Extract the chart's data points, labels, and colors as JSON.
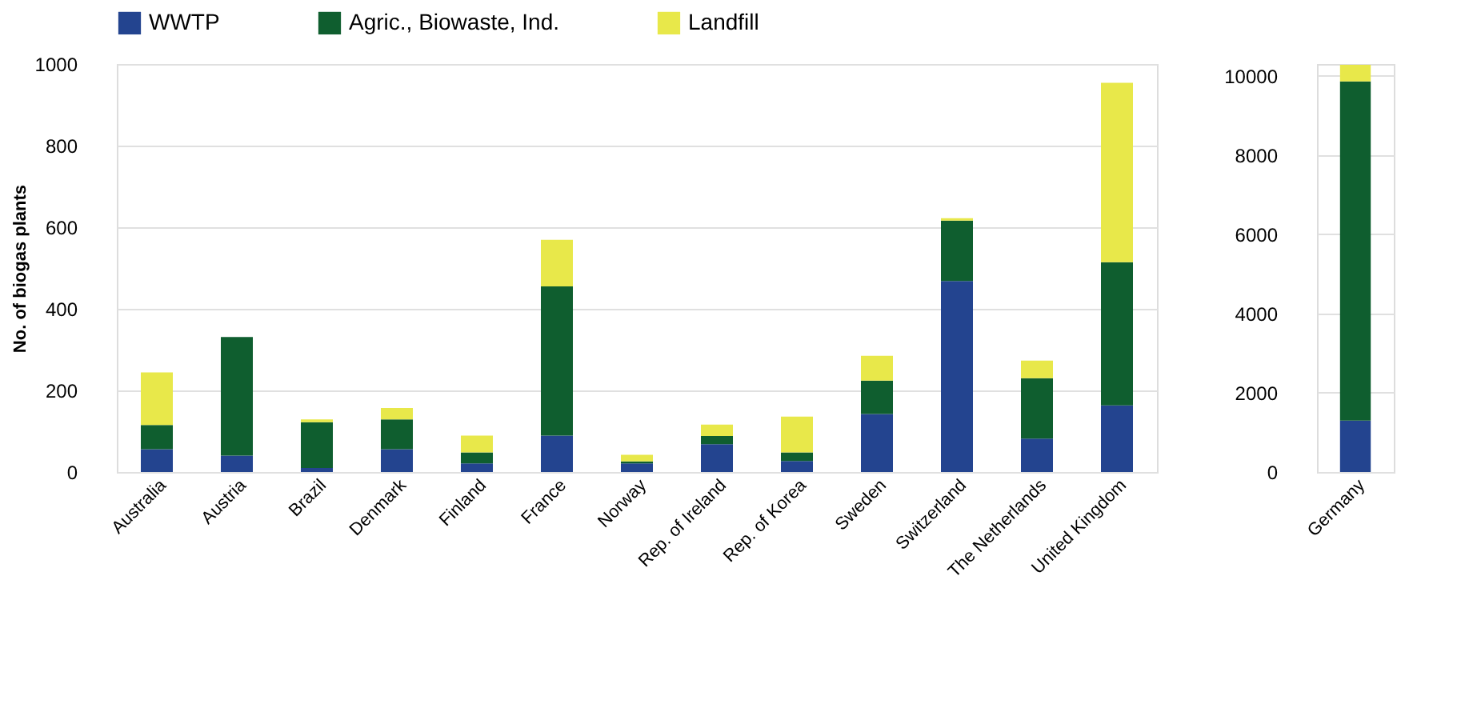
{
  "chart_data": [
    {
      "type": "bar",
      "stacked": true,
      "ylabel": "No. of biogas plants",
      "categories": [
        "Australia",
        "Austria",
        "Brazil",
        "Denmark",
        "Finland",
        "France",
        "Norway",
        "Rep. of Ireland",
        "Rep. of Korea",
        "Sweden",
        "Switzerland",
        "The Netherlands",
        "United Kingdom"
      ],
      "series": [
        {
          "name": "WWTP",
          "color": "#23448f",
          "values": [
            56,
            40,
            10,
            56,
            21,
            89,
            21,
            68,
            27,
            142,
            468,
            82,
            163
          ]
        },
        {
          "name": "Agric., Biowaste, Ind.",
          "color": "#0f5e2f",
          "values": [
            59,
            291,
            112,
            73,
            27,
            366,
            5,
            20,
            21,
            82,
            148,
            148,
            351
          ]
        },
        {
          "name": "Landfill",
          "color": "#e8e84a",
          "values": [
            129,
            0,
            7,
            28,
            41,
            114,
            16,
            28,
            88,
            61,
            6,
            43,
            440
          ]
        }
      ],
      "ylim": [
        0,
        1000
      ],
      "yticks": [
        0,
        200,
        400,
        600,
        800,
        1000
      ],
      "grid": "y",
      "legend": "top"
    },
    {
      "type": "bar",
      "stacked": true,
      "categories": [
        "Germany"
      ],
      "series": [
        {
          "color": "#23448f",
          "values": [
            1300
          ]
        },
        {
          "color": "#0f5e2f",
          "values": [
            8560
          ]
        },
        {
          "color": "#e8e84a",
          "values": [
            420
          ]
        }
      ],
      "ylim": [
        0,
        10300
      ],
      "yticks": [
        0,
        2000,
        4000,
        6000,
        8000,
        10000
      ],
      "grid": "y"
    }
  ]
}
